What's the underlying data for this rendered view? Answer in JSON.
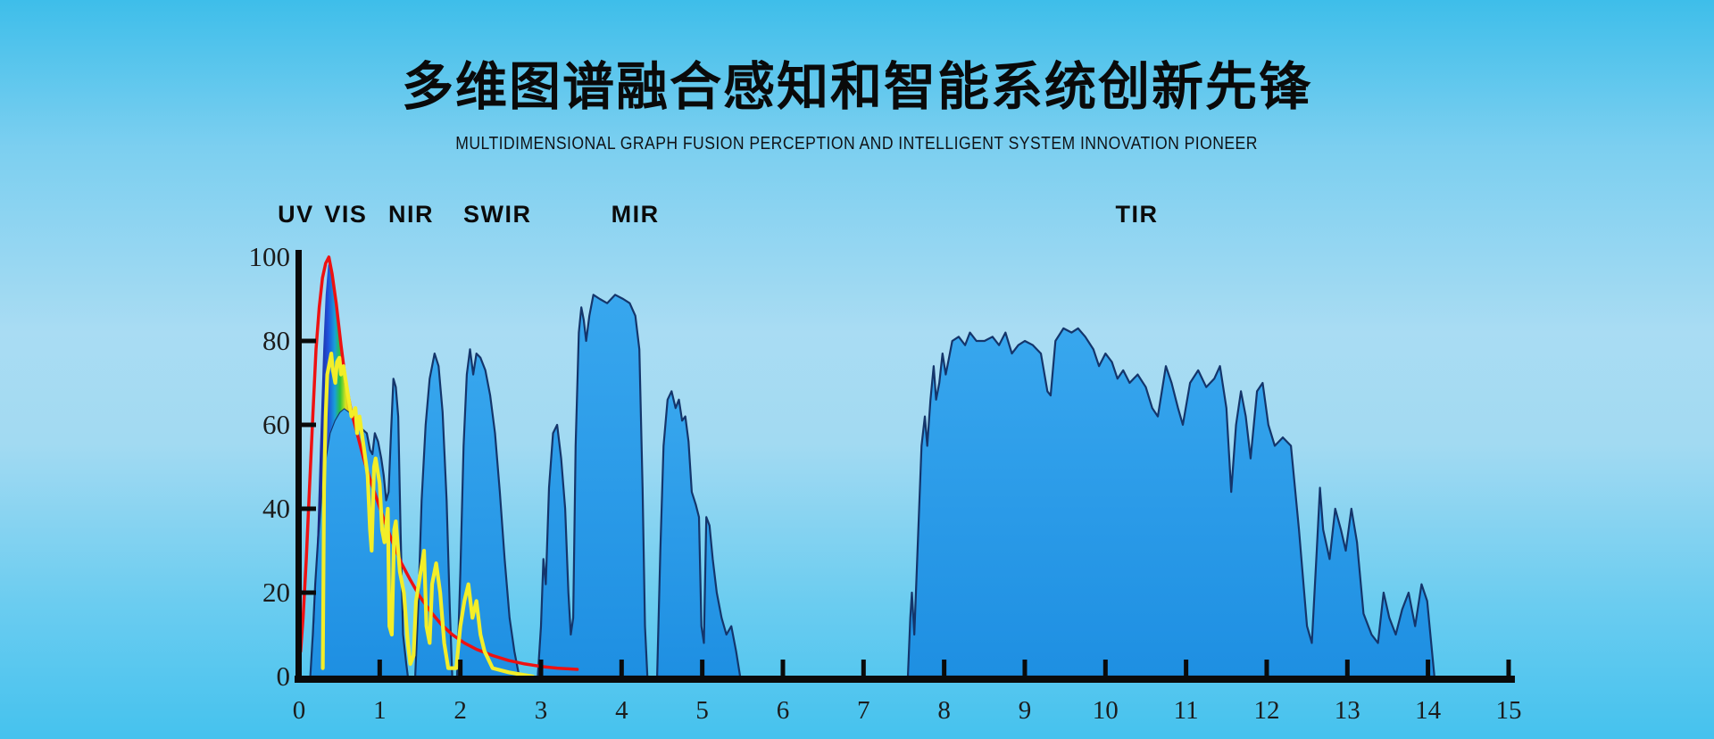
{
  "header": {
    "title": "多维图谱融合感知和智能系统创新先锋",
    "subtitle": "MULTIDIMENSIONAL GRAPH FUSION PERCEPTION AND INTELLIGENT SYSTEM INNOVATION PIONEER"
  },
  "colors": {
    "background_top": "#3ebeea",
    "background_mid": "#a9dcf3",
    "background_bottom": "#45c2ee",
    "window_fill_top": "#38a7ee",
    "window_fill_bottom": "#1e8fe2",
    "window_outline": "#14356b",
    "blackbody_curve": "#ee1111",
    "solar_curve": "#f3ee28",
    "axis": "#0a0a0a",
    "tick_text": "#1c1c1c",
    "band_text": "#0b0b0b"
  },
  "chart_data": {
    "type": "area",
    "title": "atmospheric transmission windows vs wavelength (stylized)",
    "xlim": [
      0,
      15
    ],
    "ylim": [
      0,
      100
    ],
    "grid": false,
    "legend": "none",
    "x_ticks": [
      0,
      1,
      2,
      3,
      4,
      5,
      6,
      7,
      8,
      9,
      10,
      11,
      12,
      13,
      14,
      15
    ],
    "y_ticks": [
      0,
      20,
      40,
      60,
      80,
      100
    ],
    "band_labels": [
      {
        "label": "UV",
        "x": -0.04
      },
      {
        "label": "VIS",
        "x": 0.58
      },
      {
        "label": "NIR",
        "x": 1.39
      },
      {
        "label": "SWIR",
        "x": 2.46
      },
      {
        "label": "MIR",
        "x": 4.17
      },
      {
        "label": "TIR",
        "x": 10.39
      }
    ],
    "windows": [
      [
        [
          0.14,
          0
        ],
        [
          0.17,
          10
        ],
        [
          0.2,
          22
        ],
        [
          0.24,
          34
        ],
        [
          0.28,
          44
        ],
        [
          0.33,
          52
        ],
        [
          0.38,
          58
        ],
        [
          0.44,
          61
        ],
        [
          0.5,
          63
        ],
        [
          0.56,
          64
        ],
        [
          0.63,
          63
        ],
        [
          0.7,
          61
        ],
        [
          0.78,
          59
        ],
        [
          0.84,
          58
        ],
        [
          0.88,
          54
        ],
        [
          0.91,
          53
        ],
        [
          0.94,
          58
        ],
        [
          0.98,
          56
        ],
        [
          1.02,
          52
        ],
        [
          1.05,
          48
        ],
        [
          1.08,
          42
        ],
        [
          1.11,
          44
        ],
        [
          1.14,
          58
        ],
        [
          1.17,
          71
        ],
        [
          1.2,
          69
        ],
        [
          1.23,
          62
        ],
        [
          1.26,
          34
        ],
        [
          1.29,
          10
        ],
        [
          1.33,
          3
        ],
        [
          1.35,
          0
        ]
      ],
      [
        [
          1.44,
          0
        ],
        [
          1.48,
          18
        ],
        [
          1.52,
          42
        ],
        [
          1.57,
          60
        ],
        [
          1.62,
          71
        ],
        [
          1.68,
          77
        ],
        [
          1.73,
          74
        ],
        [
          1.78,
          63
        ],
        [
          1.83,
          42
        ],
        [
          1.87,
          16
        ],
        [
          1.9,
          0
        ]
      ],
      [
        [
          1.96,
          0
        ],
        [
          2.0,
          25
        ],
        [
          2.04,
          55
        ],
        [
          2.08,
          72
        ],
        [
          2.12,
          78
        ],
        [
          2.16,
          72
        ],
        [
          2.2,
          77
        ],
        [
          2.25,
          76
        ],
        [
          2.31,
          73
        ],
        [
          2.37,
          67
        ],
        [
          2.43,
          58
        ],
        [
          2.49,
          44
        ],
        [
          2.55,
          28
        ],
        [
          2.61,
          14
        ],
        [
          2.67,
          6
        ],
        [
          2.73,
          0
        ]
      ],
      [
        [
          2.96,
          0
        ],
        [
          3.0,
          12
        ],
        [
          3.03,
          28
        ],
        [
          3.06,
          22
        ],
        [
          3.1,
          45
        ],
        [
          3.15,
          58
        ],
        [
          3.2,
          60
        ],
        [
          3.25,
          52
        ],
        [
          3.3,
          40
        ],
        [
          3.34,
          20
        ],
        [
          3.37,
          10
        ],
        [
          3.4,
          14
        ],
        [
          3.43,
          55
        ],
        [
          3.47,
          82
        ],
        [
          3.5,
          88
        ],
        [
          3.53,
          85
        ],
        [
          3.56,
          80
        ],
        [
          3.6,
          86
        ],
        [
          3.65,
          91
        ],
        [
          3.73,
          90
        ],
        [
          3.82,
          89
        ],
        [
          3.92,
          91
        ],
        [
          4.02,
          90
        ],
        [
          4.1,
          89
        ],
        [
          4.17,
          86
        ],
        [
          4.22,
          78
        ],
        [
          4.26,
          45
        ],
        [
          4.29,
          12
        ],
        [
          4.32,
          0
        ]
      ],
      [
        [
          4.44,
          0
        ],
        [
          4.48,
          30
        ],
        [
          4.52,
          55
        ],
        [
          4.57,
          66
        ],
        [
          4.62,
          68
        ],
        [
          4.67,
          64
        ],
        [
          4.71,
          66
        ],
        [
          4.75,
          61
        ],
        [
          4.79,
          62
        ],
        [
          4.83,
          56
        ],
        [
          4.87,
          44
        ],
        [
          4.92,
          41
        ],
        [
          4.96,
          38
        ],
        [
          4.99,
          12
        ],
        [
          5.02,
          8
        ],
        [
          5.05,
          38
        ],
        [
          5.09,
          36
        ],
        [
          5.13,
          28
        ],
        [
          5.18,
          20
        ],
        [
          5.24,
          14
        ],
        [
          5.3,
          10
        ],
        [
          5.36,
          12
        ],
        [
          5.42,
          6
        ],
        [
          5.47,
          0
        ]
      ],
      [
        [
          7.55,
          0
        ],
        [
          7.58,
          14
        ],
        [
          7.6,
          20
        ],
        [
          7.63,
          10
        ],
        [
          7.67,
          30
        ],
        [
          7.72,
          55
        ],
        [
          7.76,
          62
        ],
        [
          7.79,
          55
        ],
        [
          7.83,
          66
        ],
        [
          7.87,
          74
        ],
        [
          7.9,
          66
        ],
        [
          7.94,
          70
        ],
        [
          7.98,
          77
        ],
        [
          8.02,
          72
        ],
        [
          8.06,
          76
        ],
        [
          8.1,
          80
        ],
        [
          8.18,
          81
        ],
        [
          8.26,
          79
        ],
        [
          8.32,
          82
        ],
        [
          8.4,
          80
        ],
        [
          8.5,
          80
        ],
        [
          8.6,
          81
        ],
        [
          8.68,
          79
        ],
        [
          8.76,
          82
        ],
        [
          8.84,
          77
        ],
        [
          8.92,
          79
        ],
        [
          9.0,
          80
        ],
        [
          9.1,
          79
        ],
        [
          9.2,
          77
        ],
        [
          9.28,
          68
        ],
        [
          9.32,
          67
        ],
        [
          9.38,
          80
        ],
        [
          9.48,
          83
        ],
        [
          9.58,
          82
        ],
        [
          9.66,
          83
        ],
        [
          9.75,
          81
        ],
        [
          9.85,
          78
        ],
        [
          9.92,
          74
        ],
        [
          10.0,
          77
        ],
        [
          10.08,
          75
        ],
        [
          10.15,
          71
        ],
        [
          10.22,
          73
        ],
        [
          10.3,
          70
        ],
        [
          10.4,
          72
        ],
        [
          10.5,
          69
        ],
        [
          10.58,
          64
        ],
        [
          10.65,
          62
        ],
        [
          10.75,
          74
        ],
        [
          10.82,
          70
        ],
        [
          10.9,
          64
        ],
        [
          10.96,
          60
        ],
        [
          11.05,
          70
        ],
        [
          11.15,
          73
        ],
        [
          11.25,
          69
        ],
        [
          11.35,
          71
        ],
        [
          11.42,
          74
        ],
        [
          11.5,
          64
        ],
        [
          11.56,
          44
        ],
        [
          11.62,
          60
        ],
        [
          11.68,
          68
        ],
        [
          11.74,
          62
        ],
        [
          11.8,
          52
        ],
        [
          11.88,
          68
        ],
        [
          11.95,
          70
        ],
        [
          12.02,
          60
        ],
        [
          12.1,
          55
        ],
        [
          12.2,
          57
        ],
        [
          12.3,
          55
        ],
        [
          12.4,
          35
        ],
        [
          12.5,
          12
        ],
        [
          12.56,
          8
        ],
        [
          12.62,
          30
        ],
        [
          12.66,
          45
        ],
        [
          12.7,
          35
        ],
        [
          12.78,
          28
        ],
        [
          12.85,
          40
        ],
        [
          12.92,
          35
        ],
        [
          12.98,
          30
        ],
        [
          13.05,
          40
        ],
        [
          13.12,
          32
        ],
        [
          13.2,
          15
        ],
        [
          13.3,
          10
        ],
        [
          13.38,
          8
        ],
        [
          13.45,
          20
        ],
        [
          13.52,
          14
        ],
        [
          13.6,
          10
        ],
        [
          13.68,
          16
        ],
        [
          13.76,
          20
        ],
        [
          13.84,
          12
        ],
        [
          13.92,
          22
        ],
        [
          13.99,
          18
        ],
        [
          14.04,
          8
        ],
        [
          14.08,
          0
        ]
      ]
    ],
    "blackbody_curve": [
      [
        0.02,
        6
      ],
      [
        0.05,
        14
      ],
      [
        0.09,
        28
      ],
      [
        0.13,
        45
      ],
      [
        0.17,
        62
      ],
      [
        0.21,
        78
      ],
      [
        0.25,
        88
      ],
      [
        0.29,
        95
      ],
      [
        0.33,
        98.5
      ],
      [
        0.37,
        100
      ],
      [
        0.41,
        96
      ],
      [
        0.46,
        89
      ],
      [
        0.52,
        79
      ],
      [
        0.58,
        70
      ],
      [
        0.65,
        63
      ],
      [
        0.72,
        58
      ],
      [
        0.8,
        52
      ],
      [
        0.88,
        47
      ],
      [
        0.97,
        42
      ],
      [
        1.06,
        37
      ],
      [
        1.16,
        32
      ],
      [
        1.27,
        27
      ],
      [
        1.38,
        23
      ],
      [
        1.5,
        19
      ],
      [
        1.63,
        15.5
      ],
      [
        1.76,
        12.5
      ],
      [
        1.9,
        10
      ],
      [
        2.05,
        8
      ],
      [
        2.2,
        6.5
      ],
      [
        2.4,
        5
      ],
      [
        2.6,
        3.8
      ],
      [
        2.8,
        3
      ],
      [
        3.0,
        2.4
      ],
      [
        3.2,
        2
      ],
      [
        3.45,
        1.7
      ]
    ],
    "solar_curve": [
      [
        0.295,
        2
      ],
      [
        0.31,
        45
      ],
      [
        0.33,
        62
      ],
      [
        0.35,
        72
      ],
      [
        0.38,
        75
      ],
      [
        0.4,
        77
      ],
      [
        0.42,
        73
      ],
      [
        0.45,
        70
      ],
      [
        0.47,
        75
      ],
      [
        0.5,
        76
      ],
      [
        0.52,
        72
      ],
      [
        0.55,
        74
      ],
      [
        0.6,
        68
      ],
      [
        0.65,
        62
      ],
      [
        0.7,
        64
      ],
      [
        0.72,
        58
      ],
      [
        0.75,
        62
      ],
      [
        0.8,
        55
      ],
      [
        0.85,
        48
      ],
      [
        0.88,
        35
      ],
      [
        0.9,
        30
      ],
      [
        0.93,
        50
      ],
      [
        0.95,
        52
      ],
      [
        1.0,
        46
      ],
      [
        1.03,
        35
      ],
      [
        1.06,
        32
      ],
      [
        1.1,
        40
      ],
      [
        1.12,
        12
      ],
      [
        1.15,
        10
      ],
      [
        1.18,
        35
      ],
      [
        1.2,
        37
      ],
      [
        1.25,
        25
      ],
      [
        1.3,
        20
      ],
      [
        1.35,
        8
      ],
      [
        1.38,
        3
      ],
      [
        1.42,
        5
      ],
      [
        1.45,
        18
      ],
      [
        1.5,
        24
      ],
      [
        1.55,
        30
      ],
      [
        1.58,
        12
      ],
      [
        1.62,
        8
      ],
      [
        1.65,
        22
      ],
      [
        1.7,
        27
      ],
      [
        1.75,
        20
      ],
      [
        1.8,
        8
      ],
      [
        1.85,
        2
      ],
      [
        1.95,
        2
      ],
      [
        2.0,
        12
      ],
      [
        2.05,
        18
      ],
      [
        2.1,
        22
      ],
      [
        2.15,
        14
      ],
      [
        2.2,
        18
      ],
      [
        2.25,
        10
      ],
      [
        2.3,
        6
      ],
      [
        2.4,
        2
      ],
      [
        2.6,
        1
      ],
      [
        2.9,
        0
      ]
    ],
    "visible_peak": {
      "points": [
        [
          0.18,
          8
        ],
        [
          0.22,
          30
        ],
        [
          0.26,
          55
        ],
        [
          0.3,
          78
        ],
        [
          0.33,
          91
        ],
        [
          0.36,
          98
        ],
        [
          0.38,
          99
        ],
        [
          0.42,
          94
        ],
        [
          0.47,
          86
        ],
        [
          0.52,
          76
        ],
        [
          0.58,
          69
        ],
        [
          0.65,
          64
        ],
        [
          0.72,
          61.5
        ],
        [
          0.76,
          60
        ],
        [
          0.7,
          61
        ],
        [
          0.63,
          63
        ],
        [
          0.56,
          64
        ],
        [
          0.5,
          63
        ],
        [
          0.44,
          61
        ],
        [
          0.38,
          58
        ],
        [
          0.33,
          52
        ],
        [
          0.28,
          44
        ],
        [
          0.24,
          34
        ],
        [
          0.2,
          22
        ]
      ],
      "gradient_stops": [
        [
          0,
          "#141252"
        ],
        [
          0.16,
          "#1e2f9e"
        ],
        [
          0.3,
          "#2050dc"
        ],
        [
          0.44,
          "#18a0d8"
        ],
        [
          0.55,
          "#2ec437"
        ],
        [
          0.66,
          "#d8e322"
        ],
        [
          0.78,
          "#f59b13"
        ],
        [
          0.9,
          "#ee3311"
        ],
        [
          1,
          "#e51212"
        ]
      ]
    }
  }
}
